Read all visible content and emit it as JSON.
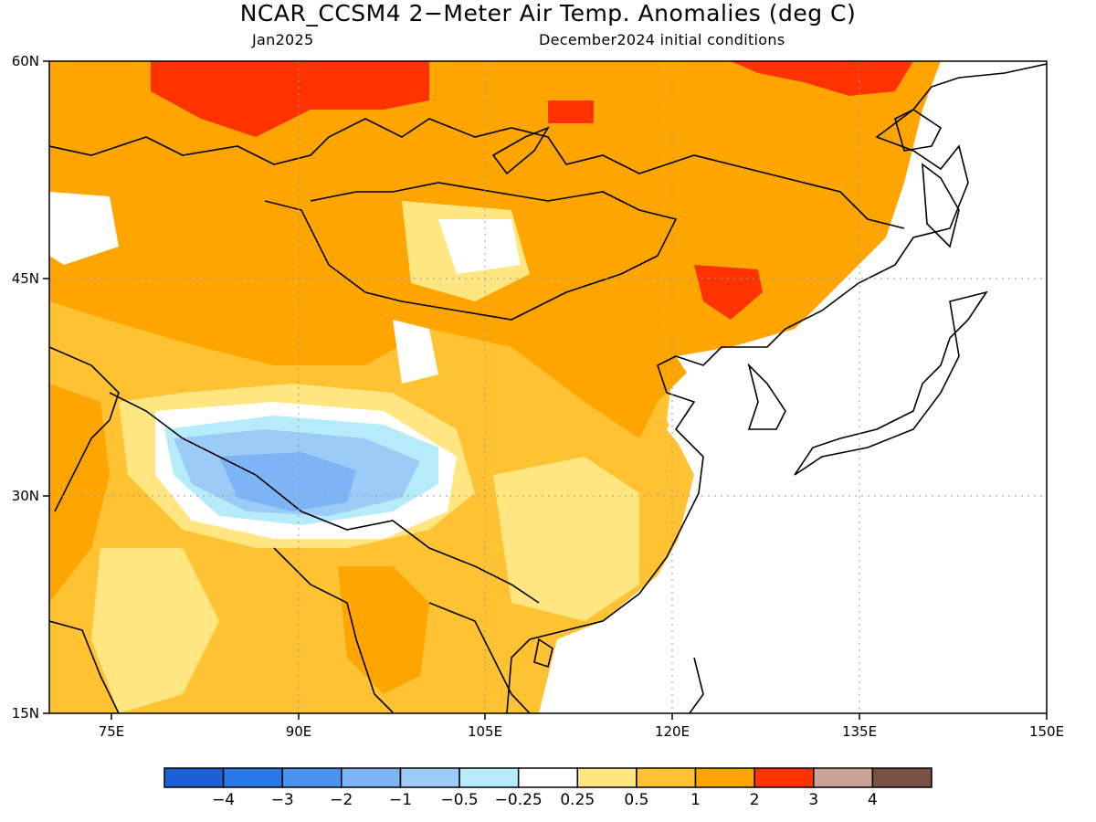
{
  "title": "NCAR_CCSM4 2−Meter Air Temp. Anomalies (deg C)",
  "subtitle_left": "Jan2025",
  "subtitle_right": "December2024 initial conditions",
  "lon_labels": [
    "75E",
    "90E",
    "105E",
    "120E",
    "135E",
    "150E"
  ],
  "lon_values": [
    75,
    90,
    105,
    120,
    135,
    150
  ],
  "lat_labels": [
    "60N",
    "45N",
    "30N",
    "15N"
  ],
  "lat_values": [
    60,
    45,
    30,
    15
  ],
  "extent": {
    "lon_min": 70,
    "lon_max": 150,
    "lat_min": 15,
    "lat_max": 60
  },
  "colorbar": {
    "colors": [
      "#1a5fd6",
      "#2b78e8",
      "#4a93f0",
      "#7db4f5",
      "#9ccbf7",
      "#b4ecf9",
      "#ffffff",
      "#ffe680",
      "#ffc233",
      "#ffa500",
      "#ff3300",
      "#c9a396",
      "#7a5244"
    ],
    "labels": [
      "−4",
      "−3",
      "−2",
      "−1",
      "−0.5",
      "−0.25",
      "0.25",
      "0.5",
      "1",
      "2",
      "3",
      "4"
    ]
  }
}
